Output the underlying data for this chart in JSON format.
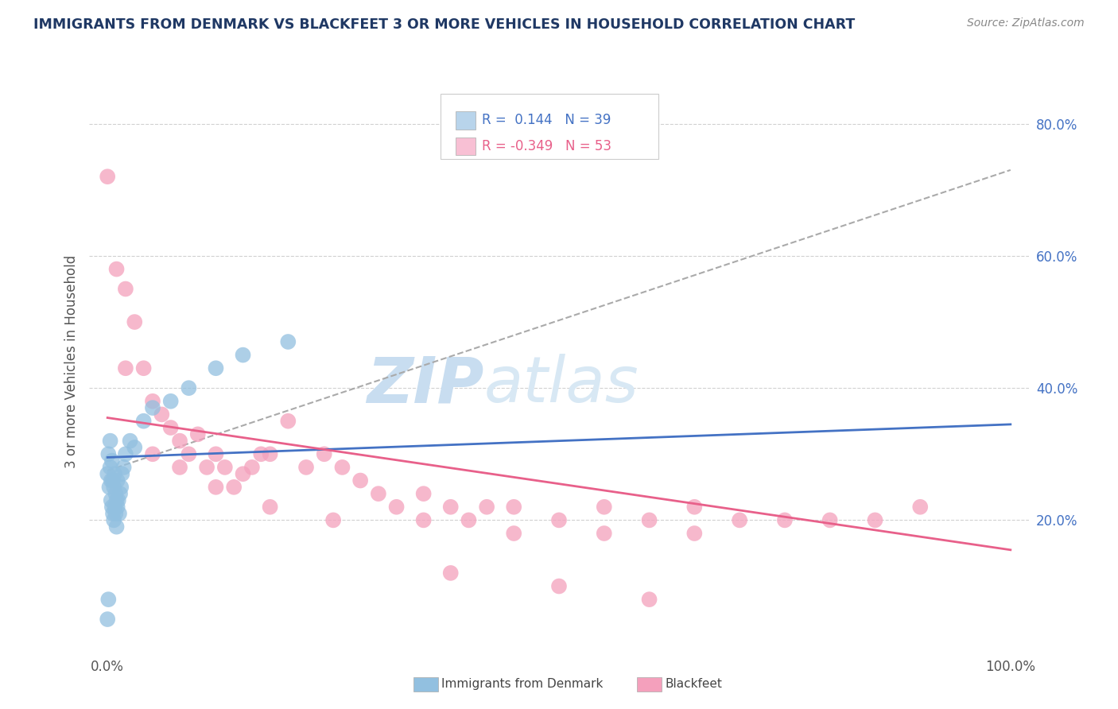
{
  "title": "IMMIGRANTS FROM DENMARK VS BLACKFEET 3 OR MORE VEHICLES IN HOUSEHOLD CORRELATION CHART",
  "source_text": "Source: ZipAtlas.com",
  "ylabel": "3 or more Vehicles in Household",
  "xlim": [
    -0.02,
    1.02
  ],
  "ylim": [
    0.0,
    0.88
  ],
  "yticks_right": [
    0.2,
    0.4,
    0.6,
    0.8
  ],
  "yticklabels_right": [
    "20.0%",
    "40.0%",
    "60.0%",
    "80.0%"
  ],
  "denmark_color": "#92c0e0",
  "blackfeet_color": "#f4a0bc",
  "denmark_trend_color": "#4472c4",
  "blackfeet_trend_color": "#e8608a",
  "gray_dash_color": "#aaaaaa",
  "title_color": "#1f3864",
  "source_color": "#888888",
  "legend_blue_color": "#b8d4eb",
  "legend_pink_color": "#f8c0d4",
  "background_color": "#ffffff",
  "grid_color": "#cccccc",
  "watermark_zip_color": "#c8ddf0",
  "watermark_atlas_color": "#d8e8f4",
  "denmark_scatter_x": [
    0.0,
    0.001,
    0.002,
    0.003,
    0.003,
    0.004,
    0.004,
    0.005,
    0.005,
    0.006,
    0.006,
    0.007,
    0.007,
    0.008,
    0.008,
    0.009,
    0.009,
    0.01,
    0.01,
    0.011,
    0.011,
    0.012,
    0.013,
    0.014,
    0.015,
    0.016,
    0.018,
    0.02,
    0.025,
    0.03,
    0.04,
    0.05,
    0.07,
    0.09,
    0.12,
    0.15,
    0.2,
    0.0,
    0.001
  ],
  "denmark_scatter_y": [
    0.27,
    0.3,
    0.25,
    0.28,
    0.32,
    0.23,
    0.26,
    0.22,
    0.29,
    0.21,
    0.26,
    0.2,
    0.25,
    0.22,
    0.27,
    0.21,
    0.24,
    0.19,
    0.23,
    0.22,
    0.26,
    0.23,
    0.21,
    0.24,
    0.25,
    0.27,
    0.28,
    0.3,
    0.32,
    0.31,
    0.35,
    0.37,
    0.38,
    0.4,
    0.43,
    0.45,
    0.47,
    0.05,
    0.08
  ],
  "blackfeet_scatter_x": [
    0.0,
    0.01,
    0.02,
    0.03,
    0.04,
    0.05,
    0.06,
    0.07,
    0.08,
    0.09,
    0.1,
    0.11,
    0.12,
    0.13,
    0.14,
    0.15,
    0.16,
    0.17,
    0.18,
    0.2,
    0.22,
    0.24,
    0.26,
    0.28,
    0.3,
    0.32,
    0.35,
    0.38,
    0.4,
    0.42,
    0.45,
    0.5,
    0.55,
    0.6,
    0.65,
    0.7,
    0.75,
    0.8,
    0.85,
    0.9,
    0.02,
    0.05,
    0.08,
    0.12,
    0.18,
    0.25,
    0.35,
    0.45,
    0.55,
    0.65,
    0.38,
    0.5,
    0.6
  ],
  "blackfeet_scatter_y": [
    0.72,
    0.58,
    0.55,
    0.5,
    0.43,
    0.38,
    0.36,
    0.34,
    0.32,
    0.3,
    0.33,
    0.28,
    0.3,
    0.28,
    0.25,
    0.27,
    0.28,
    0.3,
    0.3,
    0.35,
    0.28,
    0.3,
    0.28,
    0.26,
    0.24,
    0.22,
    0.24,
    0.22,
    0.2,
    0.22,
    0.22,
    0.2,
    0.22,
    0.2,
    0.22,
    0.2,
    0.2,
    0.2,
    0.2,
    0.22,
    0.43,
    0.3,
    0.28,
    0.25,
    0.22,
    0.2,
    0.2,
    0.18,
    0.18,
    0.18,
    0.12,
    0.1,
    0.08
  ],
  "denmark_trend_x0": 0.0,
  "denmark_trend_y0": 0.295,
  "denmark_trend_x1": 1.0,
  "denmark_trend_y1": 0.345,
  "blackfeet_trend_x0": 0.0,
  "blackfeet_trend_y0": 0.355,
  "blackfeet_trend_x1": 1.0,
  "blackfeet_trend_y1": 0.155,
  "gray_trend_x0": 0.0,
  "gray_trend_y0": 0.275,
  "gray_trend_x1": 1.0,
  "gray_trend_y1": 0.73
}
